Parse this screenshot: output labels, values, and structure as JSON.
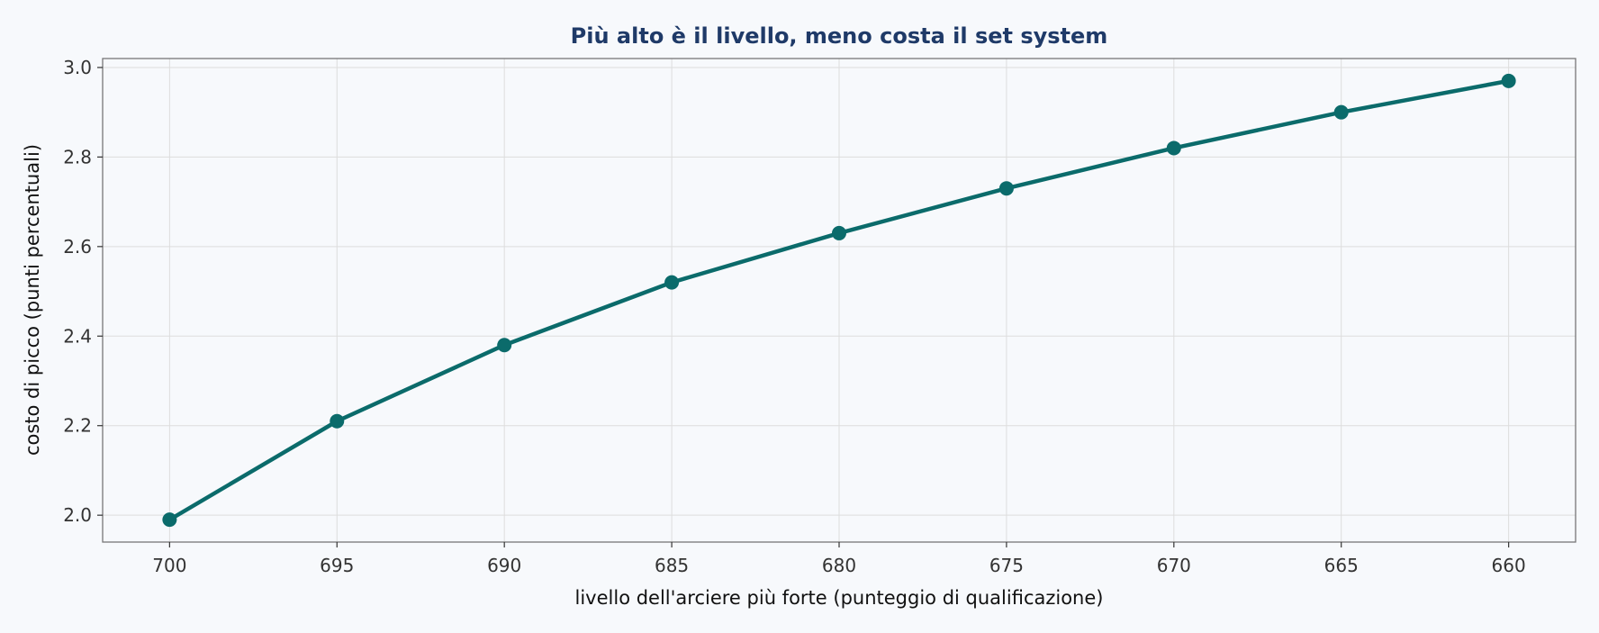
{
  "chart_data": {
    "type": "line",
    "title": "Più alto è il livello, meno costa il set system",
    "xlabel": "livello dell'arciere più forte (punteggio di qualificazione)",
    "ylabel": "costo di picco (punti percentuali)",
    "x": [
      700,
      695,
      690,
      685,
      680,
      675,
      670,
      665,
      660
    ],
    "x_tick_labels": [
      "700",
      "695",
      "690",
      "685",
      "680",
      "675",
      "670",
      "665",
      "660"
    ],
    "x_reversed": true,
    "xlim": [
      702,
      658
    ],
    "ylim": [
      1.94,
      3.02
    ],
    "y_ticks": [
      2.0,
      2.2,
      2.4,
      2.6,
      2.8,
      3.0
    ],
    "y_tick_labels": [
      "2.0",
      "2.2",
      "2.4",
      "2.6",
      "2.8",
      "3.0"
    ],
    "series": [
      {
        "values": [
          1.99,
          2.21,
          2.38,
          2.52,
          2.63,
          2.73,
          2.82,
          2.9,
          2.97
        ],
        "marker": "circle"
      }
    ],
    "grid": true,
    "legend": "none",
    "colors": {
      "series": "#0b6b6b",
      "title": "#1f3a68",
      "background": "#f7f9fc",
      "grid": "#dddddd",
      "frame": "#777777"
    }
  }
}
